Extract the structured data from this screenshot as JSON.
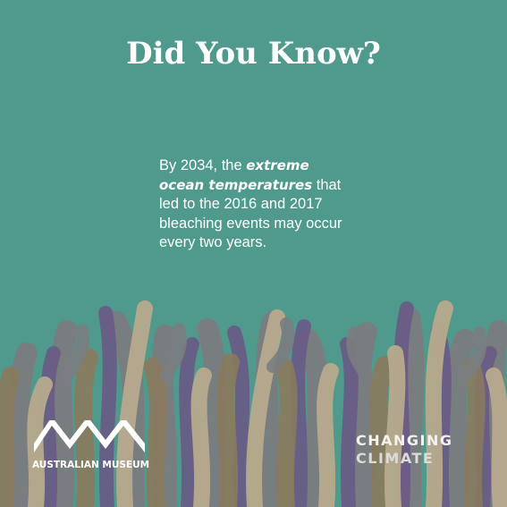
{
  "title": "Did You Know?",
  "fact": {
    "part1": "By 2034, the ",
    "emphasis": "extreme ocean temperatures",
    "part2": " that led to the 2016 and 2017 bleaching events may occur every two years."
  },
  "logos": {
    "australian_museum": "AUSTRALIAN MUSEUM",
    "changing_climate_line1": "CHANGING",
    "changing_climate_line2": "CLIMATE"
  },
  "colors": {
    "background": "#4f9a8c",
    "coral_purple": "#6a5a86",
    "coral_grey": "#7b7d80",
    "coral_tan": "#b8aa8e",
    "coral_brown": "#8a7a5e"
  }
}
